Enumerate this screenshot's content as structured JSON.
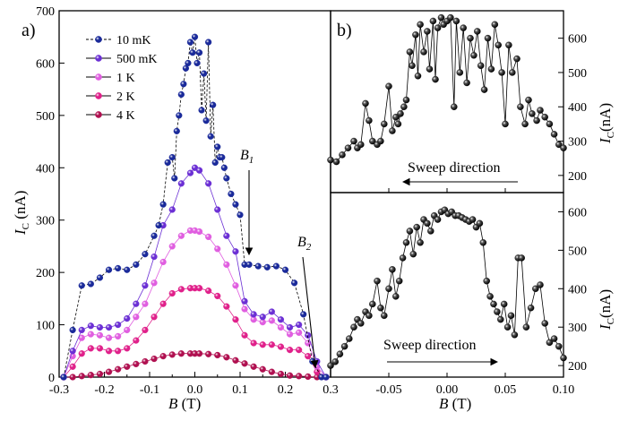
{
  "chart_data": [
    {
      "panel": "a)",
      "type": "scatter",
      "xlabel": "B (T)",
      "xlabel_base": "B",
      "xlabel_unit": " (T)",
      "ylabel": "I_C (nA)",
      "ylabel_base": "I",
      "ylabel_sub": "C",
      "ylabel_unit": " (nA)",
      "xlim": [
        -0.3,
        0.3
      ],
      "ylim": [
        0,
        700
      ],
      "xticks": [
        -0.3,
        -0.2,
        -0.1,
        0.0,
        0.1,
        0.2,
        0.3
      ],
      "xtick_labels": [
        "-0.3",
        "-0.2",
        "-0.1",
        "0.0",
        "0.1",
        "0.2",
        "0.3"
      ],
      "yticks": [
        0,
        100,
        200,
        300,
        400,
        500,
        600,
        700
      ],
      "ytick_labels": [
        "0",
        "100",
        "200",
        "300",
        "400",
        "500",
        "600",
        "700"
      ],
      "legend_position": "top-left",
      "series": [
        {
          "name": "10 mK",
          "color": "#1a2a9a",
          "dashed": true,
          "x": [
            -0.29,
            -0.27,
            -0.25,
            -0.23,
            -0.21,
            -0.19,
            -0.17,
            -0.15,
            -0.13,
            -0.11,
            -0.09,
            -0.08,
            -0.07,
            -0.06,
            -0.05,
            -0.045,
            -0.04,
            -0.035,
            -0.03,
            -0.025,
            -0.02,
            -0.015,
            -0.01,
            -0.005,
            0.0,
            0.005,
            0.01,
            0.015,
            0.02,
            0.025,
            0.03,
            0.035,
            0.04,
            0.045,
            0.05,
            0.055,
            0.06,
            0.065,
            0.07,
            0.08,
            0.09,
            0.1,
            0.11,
            0.12,
            0.14,
            0.16,
            0.18,
            0.2,
            0.22,
            0.24,
            0.26,
            0.28,
            0.29
          ],
          "y": [
            0,
            90,
            175,
            178,
            190,
            205,
            208,
            205,
            215,
            235,
            270,
            290,
            330,
            410,
            420,
            380,
            470,
            500,
            540,
            560,
            590,
            600,
            640,
            620,
            650,
            600,
            620,
            510,
            580,
            490,
            640,
            460,
            520,
            410,
            440,
            420,
            420,
            400,
            380,
            350,
            330,
            310,
            215,
            215,
            212,
            210,
            212,
            205,
            180,
            120,
            30,
            0,
            0
          ]
        },
        {
          "name": "500 mK",
          "color": "#6b2fd4",
          "dashed": false,
          "x": [
            -0.29,
            -0.27,
            -0.25,
            -0.23,
            -0.21,
            -0.19,
            -0.17,
            -0.15,
            -0.13,
            -0.11,
            -0.09,
            -0.07,
            -0.05,
            -0.03,
            -0.01,
            0.0,
            0.01,
            0.03,
            0.05,
            0.07,
            0.09,
            0.11,
            0.13,
            0.15,
            0.17,
            0.19,
            0.21,
            0.23,
            0.25,
            0.27,
            0.29
          ],
          "y": [
            0,
            50,
            90,
            98,
            95,
            95,
            100,
            112,
            140,
            175,
            230,
            290,
            320,
            370,
            390,
            400,
            395,
            370,
            320,
            270,
            240,
            145,
            120,
            115,
            125,
            110,
            95,
            100,
            80,
            30,
            0
          ]
        },
        {
          "name": "1 K",
          "color": "#e05ee0",
          "dashed": false,
          "x": [
            -0.29,
            -0.27,
            -0.25,
            -0.23,
            -0.21,
            -0.19,
            -0.17,
            -0.15,
            -0.13,
            -0.11,
            -0.09,
            -0.07,
            -0.05,
            -0.03,
            -0.01,
            0.0,
            0.01,
            0.03,
            0.05,
            0.07,
            0.09,
            0.11,
            0.13,
            0.15,
            0.17,
            0.19,
            0.21,
            0.23,
            0.25,
            0.27,
            0.29
          ],
          "y": [
            0,
            40,
            75,
            82,
            80,
            75,
            78,
            90,
            115,
            140,
            180,
            220,
            250,
            270,
            280,
            280,
            278,
            268,
            245,
            215,
            175,
            130,
            110,
            105,
            108,
            95,
            82,
            85,
            65,
            20,
            0
          ]
        },
        {
          "name": "2 K",
          "color": "#e0208a",
          "dashed": false,
          "x": [
            -0.29,
            -0.27,
            -0.25,
            -0.23,
            -0.21,
            -0.19,
            -0.17,
            -0.15,
            -0.13,
            -0.11,
            -0.09,
            -0.07,
            -0.05,
            -0.03,
            -0.01,
            0.0,
            0.01,
            0.03,
            0.05,
            0.07,
            0.09,
            0.11,
            0.13,
            0.15,
            0.17,
            0.19,
            0.21,
            0.23,
            0.25,
            0.27,
            0.29
          ],
          "y": [
            0,
            20,
            45,
            55,
            55,
            50,
            50,
            55,
            70,
            90,
            115,
            140,
            160,
            168,
            170,
            170,
            170,
            165,
            155,
            135,
            110,
            80,
            65,
            62,
            62,
            58,
            52,
            52,
            40,
            10,
            0
          ]
        },
        {
          "name": "4 K",
          "color": "#b01050",
          "dashed": false,
          "x": [
            -0.29,
            -0.27,
            -0.25,
            -0.23,
            -0.21,
            -0.19,
            -0.17,
            -0.15,
            -0.13,
            -0.11,
            -0.09,
            -0.07,
            -0.05,
            -0.03,
            -0.01,
            0.0,
            0.01,
            0.03,
            0.05,
            0.07,
            0.09,
            0.11,
            0.13,
            0.15,
            0.17,
            0.19,
            0.21,
            0.23,
            0.25,
            0.27,
            0.29
          ],
          "y": [
            0,
            0,
            2,
            4,
            6,
            10,
            15,
            20,
            25,
            30,
            35,
            40,
            43,
            45,
            45,
            45,
            45,
            44,
            42,
            38,
            32,
            26,
            20,
            15,
            10,
            6,
            3,
            2,
            1,
            0,
            0
          ]
        }
      ],
      "annotations": [
        {
          "text": "B",
          "sub": "1",
          "x": 0.125,
          "y": 320
        },
        {
          "text": "B",
          "sub": "2",
          "x": 0.28,
          "y": 10
        }
      ]
    },
    {
      "panel": "b)",
      "type": "line",
      "subpanels": [
        {
          "name": "top",
          "sweep_text": "Sweep direction",
          "arrow": "left",
          "ylabel_base": "I",
          "ylabel_sub": "C",
          "ylabel_unit": "(nA)",
          "ylim": [
            150,
            680
          ],
          "yticks": [
            200,
            300,
            400,
            500,
            600
          ],
          "ytick_labels": [
            "200",
            "300",
            "400",
            "500",
            "600"
          ],
          "x": [
            -0.1,
            -0.095,
            -0.09,
            -0.085,
            -0.08,
            -0.077,
            -0.074,
            -0.07,
            -0.067,
            -0.064,
            -0.06,
            -0.057,
            -0.054,
            -0.05,
            -0.047,
            -0.044,
            -0.042,
            -0.04,
            -0.037,
            -0.035,
            -0.032,
            -0.03,
            -0.027,
            -0.025,
            -0.023,
            -0.02,
            -0.017,
            -0.015,
            -0.012,
            -0.01,
            -0.008,
            -0.005,
            -0.003,
            0.0,
            0.003,
            0.006,
            0.008,
            0.011,
            0.014,
            0.017,
            0.02,
            0.023,
            0.026,
            0.029,
            0.032,
            0.035,
            0.038,
            0.041,
            0.044,
            0.047,
            0.05,
            0.053,
            0.056,
            0.06,
            0.063,
            0.067,
            0.07,
            0.073,
            0.077,
            0.08,
            0.084,
            0.088,
            0.092,
            0.096,
            0.1
          ],
          "y": [
            245,
            240,
            260,
            280,
            300,
            280,
            290,
            410,
            360,
            300,
            290,
            300,
            350,
            460,
            330,
            370,
            350,
            380,
            400,
            420,
            560,
            520,
            610,
            490,
            640,
            560,
            620,
            510,
            650,
            480,
            630,
            660,
            640,
            650,
            660,
            400,
            650,
            500,
            630,
            470,
            600,
            550,
            620,
            520,
            450,
            600,
            510,
            640,
            580,
            500,
            350,
            580,
            500,
            540,
            400,
            350,
            420,
            380,
            360,
            390,
            370,
            350,
            320,
            290,
            280
          ]
        },
        {
          "name": "bottom",
          "sweep_text": "Sweep direction",
          "arrow": "right",
          "ylabel_base": "I",
          "ylabel_sub": "C",
          "ylabel_unit": "(nA)",
          "ylim": [
            170,
            650
          ],
          "yticks": [
            200,
            300,
            400,
            500,
            600
          ],
          "ytick_labels": [
            "200",
            "300",
            "400",
            "500",
            "600"
          ],
          "x": [
            -0.1,
            -0.096,
            -0.092,
            -0.088,
            -0.084,
            -0.08,
            -0.077,
            -0.074,
            -0.07,
            -0.067,
            -0.064,
            -0.06,
            -0.057,
            -0.054,
            -0.05,
            -0.047,
            -0.044,
            -0.041,
            -0.038,
            -0.035,
            -0.032,
            -0.029,
            -0.026,
            -0.023,
            -0.02,
            -0.017,
            -0.014,
            -0.011,
            -0.008,
            -0.005,
            -0.002,
            0.001,
            0.004,
            0.007,
            0.01,
            0.013,
            0.016,
            0.019,
            0.022,
            0.025,
            0.028,
            0.031,
            0.034,
            0.037,
            0.04,
            0.043,
            0.046,
            0.049,
            0.052,
            0.055,
            0.058,
            0.061,
            0.064,
            0.068,
            0.072,
            0.076,
            0.08,
            0.084,
            0.088,
            0.092,
            0.096,
            0.1
          ],
          "y": [
            200,
            210,
            230,
            250,
            270,
            300,
            320,
            310,
            340,
            330,
            360,
            420,
            350,
            330,
            400,
            450,
            380,
            420,
            480,
            520,
            550,
            490,
            560,
            520,
            580,
            570,
            550,
            590,
            580,
            600,
            605,
            595,
            600,
            590,
            590,
            585,
            580,
            575,
            580,
            560,
            570,
            520,
            420,
            380,
            360,
            340,
            320,
            360,
            300,
            330,
            280,
            480,
            480,
            300,
            350,
            400,
            410,
            310,
            260,
            270,
            250,
            220
          ]
        }
      ],
      "xlabel": "B (T)",
      "xlabel_base": "B",
      "xlabel_unit": " (T)",
      "xlim": [
        -0.1,
        0.1
      ],
      "xticks": [
        -0.05,
        0.0,
        0.05,
        0.1
      ],
      "xtick_labels": [
        "-0.05",
        "0.00",
        "0.05",
        "0.10"
      ]
    }
  ]
}
